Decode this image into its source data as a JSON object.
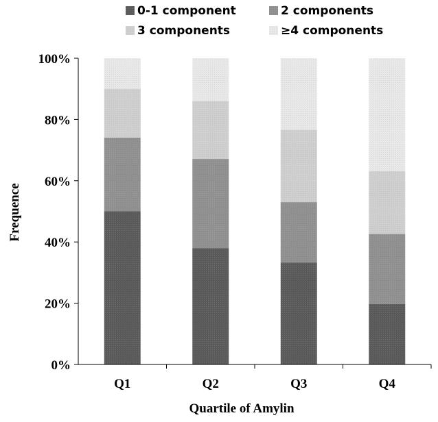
{
  "chart_data": {
    "type": "bar",
    "stacked": true,
    "normalized": true,
    "categories": [
      "Q1",
      "Q2",
      "Q3",
      "Q4"
    ],
    "series": [
      {
        "name": "0-1 component",
        "values": [
          50,
          38,
          33.3,
          19.7
        ],
        "color": "#5a5a5a",
        "pattern": "fine-dot"
      },
      {
        "name": "2 components",
        "values": [
          24.1,
          29.1,
          19.7,
          22.9
        ],
        "color": "#8f8f8f",
        "pattern": "fine-dot"
      },
      {
        "name": "3 components",
        "values": [
          15.9,
          18.9,
          23.6,
          20.5
        ],
        "color": "#cfcfcf",
        "pattern": "fine-dot"
      },
      {
        "name": "≥4 components",
        "values": [
          10,
          14,
          23.4,
          36.9
        ],
        "color": "#e8e8e8",
        "pattern": "fine-dot"
      }
    ],
    "xlabel": "Quartile of Amylin",
    "ylabel": "Frequence",
    "ylim": [
      0,
      100
    ],
    "yticks": [
      "0%",
      "20%",
      "40%",
      "60%",
      "80%",
      "100%"
    ],
    "yticks_values": [
      0,
      20,
      40,
      60,
      80,
      100
    ],
    "grid": false,
    "legend_position": "top"
  }
}
